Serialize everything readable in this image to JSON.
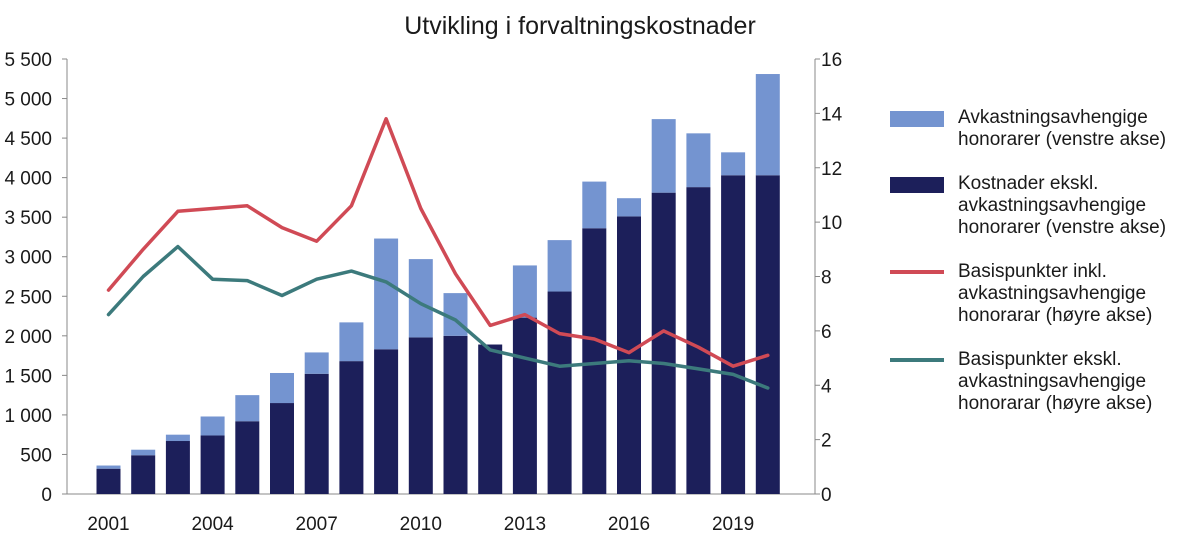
{
  "colors": {
    "perf_fees": "#7494d0",
    "costs_excl": "#1c1f5a",
    "bp_incl": "#d04a55",
    "bp_excl": "#3c7a7c"
  },
  "chart_data": {
    "type": "bar",
    "title": "Utvikling i forvaltningskostnader",
    "x": [
      2001,
      2002,
      2003,
      2004,
      2005,
      2006,
      2007,
      2008,
      2009,
      2010,
      2011,
      2012,
      2013,
      2014,
      2015,
      2016,
      2017,
      2018,
      2019,
      2020
    ],
    "x_tick_labels": [
      "2001",
      "2004",
      "2007",
      "2010",
      "2013",
      "2016",
      "2019"
    ],
    "left_axis": {
      "range": [
        0,
        5500
      ],
      "ticks": [
        "0",
        "500",
        "1 000",
        "1 500",
        "2 000",
        "2 500",
        "3 000",
        "3 500",
        "4 000",
        "4 500",
        "5 000",
        "5 500"
      ]
    },
    "right_axis": {
      "range": [
        0,
        16
      ],
      "ticks": [
        "0",
        "2",
        "4",
        "6",
        "8",
        "10",
        "12",
        "14",
        "16"
      ]
    },
    "grid": false,
    "legend_position": "right",
    "series": [
      {
        "name": "Avkastningsavhengige honorarer (venstre akse)",
        "type": "stacked-bar",
        "axis": "left",
        "values": [
          40,
          70,
          80,
          240,
          330,
          380,
          270,
          490,
          1400,
          990,
          540,
          0,
          660,
          650,
          590,
          230,
          930,
          680,
          290,
          1280
        ]
      },
      {
        "name": "Kostnader ekskl. avkastningsavhengige honorarer (venstre akse)",
        "type": "bar",
        "axis": "left",
        "values": [
          320,
          490,
          670,
          740,
          920,
          1150,
          1520,
          1680,
          1830,
          1980,
          2000,
          1890,
          2230,
          2560,
          3360,
          3510,
          3810,
          3880,
          4030,
          4030
        ]
      },
      {
        "name": "Basispunkter inkl. avkastningsavhengige honorarar (høyre akse)",
        "type": "line",
        "axis": "right",
        "values": [
          7.5,
          9.0,
          10.4,
          10.5,
          10.6,
          9.8,
          9.3,
          10.6,
          13.8,
          10.5,
          8.1,
          6.2,
          6.6,
          5.9,
          5.7,
          5.2,
          6.0,
          5.4,
          4.7,
          5.1
        ]
      },
      {
        "name": "Basispunkter ekskl. avkastningsavhengige honorarar (høyre akse)",
        "type": "line",
        "axis": "right",
        "values": [
          6.6,
          8.0,
          9.1,
          7.9,
          7.85,
          7.3,
          7.9,
          8.2,
          7.8,
          7.0,
          6.4,
          5.3,
          5.0,
          4.7,
          4.8,
          4.9,
          4.8,
          4.6,
          4.4,
          3.9
        ]
      }
    ]
  }
}
